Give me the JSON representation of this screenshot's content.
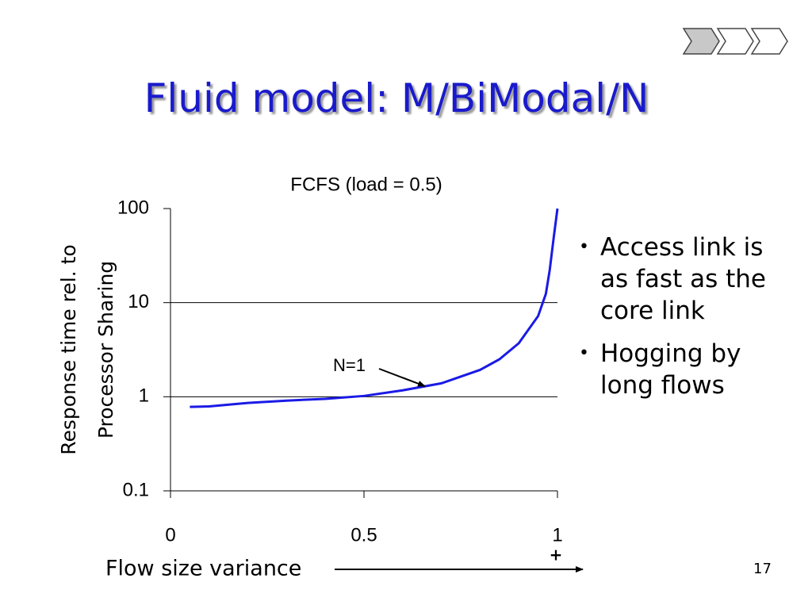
{
  "title": "Fluid model: M/BiModal/N",
  "bullets": [
    "Access link is as fast as the core link",
    "Hogging by long flows"
  ],
  "page_number": "17",
  "chart_data": {
    "type": "line",
    "title": "FCFS (load = 0.5)",
    "xlabel": "Flow size variance",
    "xlabel_suffix": "+",
    "ylabel": [
      "Response time rel. to",
      "Processor Sharing"
    ],
    "annotation": "N=1",
    "log_y": true,
    "x": [
      0.05,
      0.1,
      0.2,
      0.3,
      0.4,
      0.5,
      0.6,
      0.7,
      0.8,
      0.85,
      0.9,
      0.95,
      0.97,
      0.98,
      0.99,
      1.0
    ],
    "series": [
      {
        "name": "N=1",
        "color": "#1a1ae6",
        "values": [
          0.78,
          0.79,
          0.86,
          0.91,
          0.95,
          1.02,
          1.17,
          1.39,
          1.93,
          2.5,
          3.7,
          7.2,
          12.4,
          22.2,
          48,
          100
        ]
      }
    ],
    "xlim": [
      0,
      1
    ],
    "xticks": [
      0,
      0.5,
      1
    ],
    "ylim": [
      0.1,
      100
    ],
    "yticks": [
      0.1,
      1,
      10,
      100
    ],
    "grid": true
  }
}
